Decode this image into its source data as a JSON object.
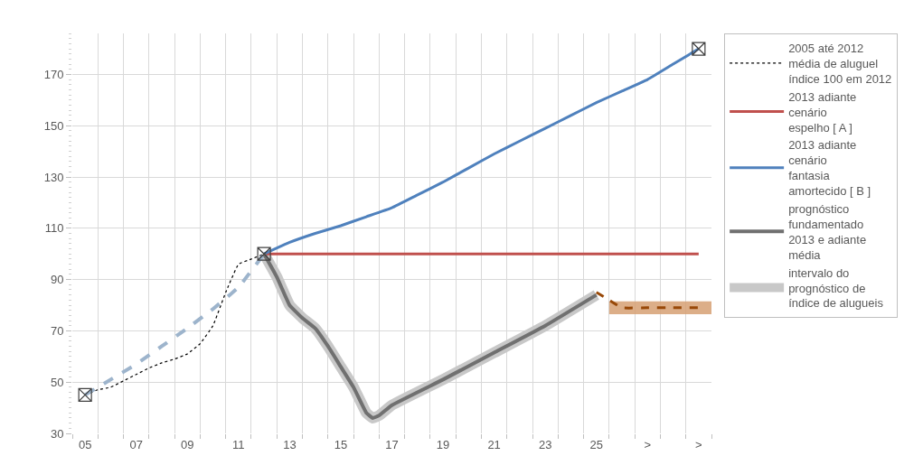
{
  "chart_data": {
    "type": "line",
    "xlim": [
      2004.5,
      2029.5
    ],
    "xticks": [
      {
        "value": 2005,
        "label": "05"
      },
      {
        "value": 2007,
        "label": "07"
      },
      {
        "value": 2009,
        "label": "09"
      },
      {
        "value": 2011,
        "label": "11"
      },
      {
        "value": 2013,
        "label": "13"
      },
      {
        "value": 2015,
        "label": "15"
      },
      {
        "value": 2017,
        "label": "17"
      },
      {
        "value": 2019,
        "label": "19"
      },
      {
        "value": 2021,
        "label": "21"
      },
      {
        "value": 2023,
        "label": "23"
      },
      {
        "value": 2025,
        "label": "25"
      },
      {
        "value": 2027,
        "label": ">"
      },
      {
        "value": 2029,
        "label": ">"
      }
    ],
    "ylim": [
      30,
      186
    ],
    "yticks": [
      30,
      50,
      70,
      90,
      110,
      130,
      150,
      170
    ],
    "grid": true,
    "legend": "right",
    "series": [
      {
        "name": "2005 até 2012\nmédia de aluguel\níndice 100 em 2012",
        "color": "#000000",
        "line_style": "dotted",
        "x": [
          2005,
          2005.5,
          2006,
          2006.5,
          2007,
          2007.5,
          2008,
          2008.5,
          2009,
          2009.5,
          2010,
          2010.5,
          2011,
          2011.5,
          2012
        ],
        "values": [
          45,
          47,
          48,
          50.5,
          53,
          55.5,
          57.5,
          59,
          61,
          65,
          72,
          85,
          96,
          98,
          100
        ]
      },
      {
        "color": "#9db4cc",
        "line_style": "dashed",
        "x": [
          2005,
          2006,
          2007,
          2008,
          2009,
          2010,
          2011,
          2012
        ],
        "values": [
          45,
          51,
          57,
          64,
          71,
          78.5,
          87,
          100
        ]
      },
      {
        "name": "2013 adiante\ncenário\nespelho [ A ]",
        "color": "#c0504d",
        "line_style": "solid",
        "x": [
          2012,
          2029
        ],
        "values": [
          100,
          100
        ]
      },
      {
        "name": "2013 adiante\ncenário\nfantasia\namortecido [ B ]",
        "color": "#4f81bd",
        "line_style": "solid",
        "x": [
          2012,
          2013,
          2014,
          2015,
          2016,
          2017,
          2018,
          2019,
          2020,
          2021,
          2022,
          2023,
          2024,
          2025,
          2026,
          2027,
          2028,
          2029
        ],
        "values": [
          100,
          104.5,
          108,
          111,
          114.5,
          118,
          123,
          128,
          133.5,
          139,
          144,
          149,
          154,
          159,
          163.5,
          168,
          174,
          180
        ]
      },
      {
        "name": "prognóstico\nfundamentado\n2013 e adiante\nmédia",
        "color": "#707070",
        "line_style": "solid",
        "x": [
          2012,
          2012.5,
          2013,
          2013.5,
          2014,
          2014.5,
          2015,
          2015.5,
          2016,
          2016.25,
          2016.5,
          2017,
          2019,
          2021,
          2023,
          2025
        ],
        "values": [
          100,
          91,
          80,
          75,
          71,
          64,
          56,
          48,
          38,
          36,
          37,
          41,
          51,
          61.5,
          72,
          84
        ]
      },
      {
        "name": "intervalo do\nprognóstico de\níndice de alugueis",
        "color": "#c8c8c8",
        "line_style": "solid",
        "x": [
          2012,
          2012.5,
          2013,
          2013.5,
          2014,
          2014.5,
          2015,
          2015.5,
          2016,
          2016.25,
          2016.5,
          2017,
          2019,
          2021,
          2023,
          2025
        ],
        "values": [
          100,
          91,
          80,
          75,
          71,
          64,
          56,
          48,
          38,
          36,
          37,
          41,
          51,
          61.5,
          72,
          84
        ]
      },
      {
        "color": "#984807",
        "line_style": "dashed",
        "x": [
          2025,
          2025.5,
          2026,
          2027,
          2028,
          2029,
          2029.5
        ],
        "values": [
          85,
          82,
          79,
          79,
          79,
          79,
          null
        ],
        "lower": [
          null,
          76.5,
          76.5,
          76.5,
          76.5,
          76.5,
          76.5
        ],
        "upper": [
          null,
          81.5,
          81.5,
          81.5,
          81.5,
          81.5,
          81.5
        ]
      },
      {
        "type": "scatter",
        "marker": "cross",
        "color": "#404040",
        "x": [
          2005,
          2012,
          2029
        ],
        "values": [
          45,
          100,
          180
        ]
      }
    ]
  }
}
